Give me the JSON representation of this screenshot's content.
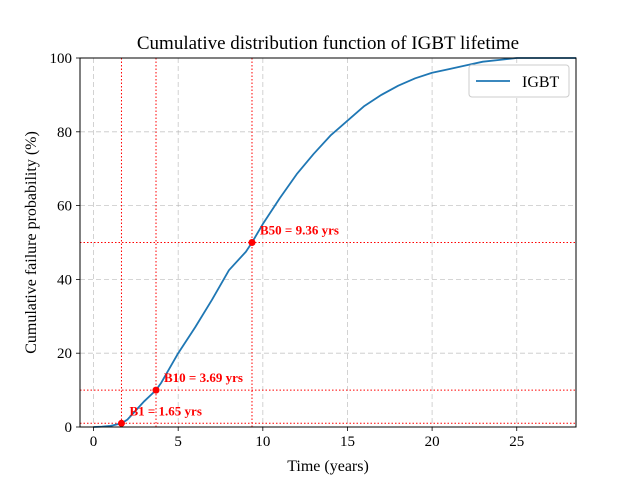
{
  "chart_data": {
    "type": "line",
    "title": "Cumulative distribution function of IGBT lifetime",
    "xlabel": "Time (years)",
    "ylabel": "Cumulative failure probability (%)",
    "xlim": [
      -0.8,
      28.5
    ],
    "ylim": [
      0,
      100
    ],
    "x_ticks": [
      0,
      5,
      10,
      15,
      20,
      25
    ],
    "y_ticks": [
      0,
      20,
      40,
      60,
      80,
      100
    ],
    "grid": true,
    "legend": {
      "position": "top-right",
      "entries": [
        "IGBT"
      ]
    },
    "series": [
      {
        "name": "IGBT",
        "color": "#1f77b4",
        "x": [
          0,
          0.5,
          1.0,
          1.3,
          1.65,
          2.0,
          2.5,
          3.0,
          3.69,
          4.0,
          5.0,
          6.0,
          7.0,
          8.0,
          9.0,
          9.36,
          10.0,
          11.0,
          12.0,
          13.0,
          14.0,
          15.0,
          16.0,
          17.0,
          18.0,
          19.0,
          20.0,
          21.0,
          22.0,
          23.0,
          24.0,
          25.0,
          26.0,
          27.0,
          28.5
        ],
        "y": [
          0,
          0.1,
          0.3,
          0.6,
          1.0,
          2.0,
          4.5,
          7.0,
          10.0,
          12.0,
          20.0,
          27.0,
          34.5,
          42.5,
          47.5,
          50.0,
          55.0,
          62.0,
          68.5,
          74.0,
          79.0,
          83.0,
          87.0,
          90.0,
          92.5,
          94.5,
          96.0,
          97.0,
          98.0,
          99.0,
          99.5,
          100.0,
          100.0,
          100.0,
          100.0
        ]
      }
    ],
    "reference_color": "#ff0000",
    "markers": [
      {
        "x": 1.65,
        "y": 1,
        "label": "B1 = 1.65 yrs"
      },
      {
        "x": 3.69,
        "y": 10,
        "label": "B10 = 3.69 yrs"
      },
      {
        "x": 9.36,
        "y": 50,
        "label": "B50 = 9.36 yrs"
      }
    ]
  }
}
